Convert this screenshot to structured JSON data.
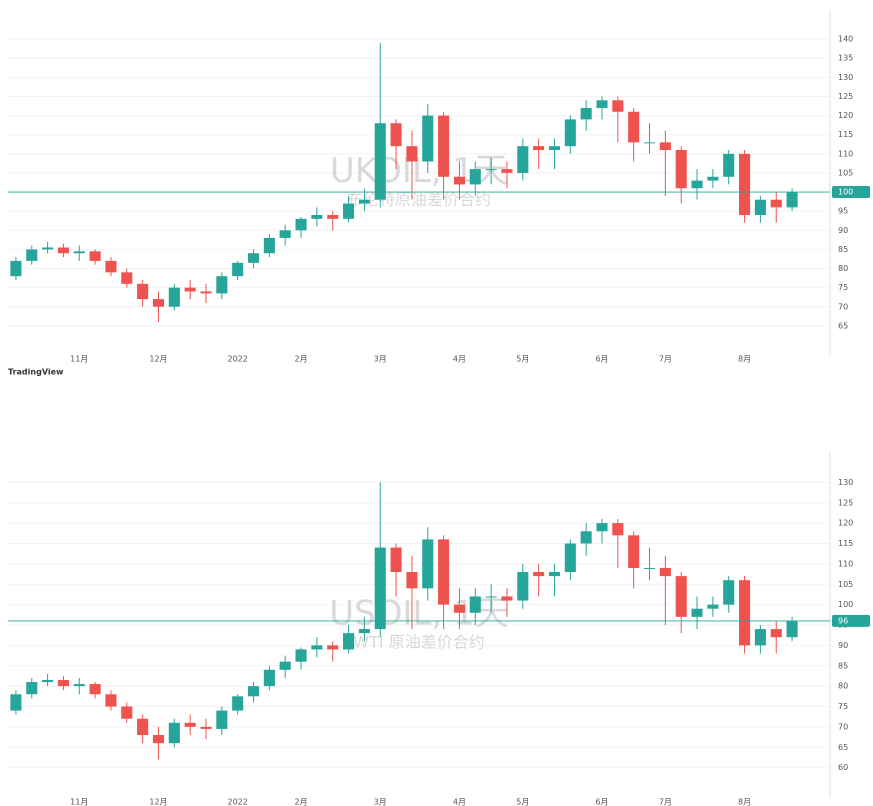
{
  "chart_data": [
    {
      "type": "candlestick",
      "watermark": "UKOIL, 1天",
      "subtitle": "布伦特原油差价合约",
      "categories": [
        null,
        null,
        null,
        null,
        "11月",
        null,
        null,
        null,
        null,
        "12月",
        null,
        null,
        null,
        null,
        "2022",
        null,
        null,
        null,
        "2月",
        null,
        null,
        null,
        null,
        "3月",
        null,
        null,
        null,
        null,
        "4月",
        null,
        null,
        null,
        "5月",
        null,
        null,
        null,
        null,
        "6月",
        null,
        null,
        null,
        "7月",
        null,
        null,
        null,
        null,
        "8月",
        null,
        null,
        null
      ],
      "open": [
        78,
        82,
        85,
        85.5,
        84,
        84.5,
        82,
        79,
        76,
        72,
        70,
        75,
        74,
        73.5,
        78,
        81.5,
        84,
        88,
        90,
        93,
        94,
        93,
        97,
        98,
        118,
        112,
        108,
        120,
        104,
        102,
        106,
        106,
        105,
        112,
        111,
        112,
        119,
        122,
        124,
        121,
        113,
        113,
        111,
        101,
        103,
        104,
        110,
        94,
        98,
        96
      ],
      "high": [
        83,
        86,
        87,
        86.5,
        86,
        85,
        83,
        80,
        77,
        74,
        76,
        77,
        76,
        79,
        82,
        85,
        89,
        91.5,
        93.5,
        96,
        95,
        99,
        101,
        139,
        119,
        116,
        123,
        121,
        108,
        108,
        109,
        108,
        114,
        114,
        114,
        120,
        124,
        125,
        125,
        122,
        118,
        116,
        112,
        106,
        106,
        111,
        111,
        99,
        100,
        101
      ],
      "low": [
        77,
        81,
        84,
        83,
        82,
        81,
        78,
        75,
        70,
        66,
        69,
        72,
        71,
        72,
        77,
        80,
        83,
        86,
        88,
        91,
        90,
        92,
        95,
        96,
        106,
        98,
        105,
        98,
        98,
        99,
        102,
        101,
        103,
        106,
        106,
        110,
        116,
        119,
        113,
        108,
        110,
        99,
        97,
        98,
        101,
        102,
        92,
        92,
        92,
        95
      ],
      "close": [
        82,
        85,
        85.5,
        84,
        84.5,
        82,
        79,
        76,
        72,
        70,
        75,
        74,
        73.5,
        78,
        81.5,
        84,
        88,
        90,
        93,
        94,
        93,
        97,
        98,
        118,
        112,
        108,
        120,
        104,
        102,
        106,
        106,
        105,
        112,
        111,
        112,
        119,
        122,
        124,
        121,
        113,
        113,
        111,
        101,
        103,
        104,
        110,
        94,
        98,
        96,
        100
      ],
      "up_color": "#26a69a",
      "down_color": "#ef5350",
      "ylim": [
        60,
        145
      ],
      "yticks": [
        65,
        70,
        75,
        80,
        85,
        90,
        95,
        100,
        105,
        110,
        115,
        120,
        125,
        130,
        135,
        140
      ],
      "grid": true
    },
    {
      "type": "candlestick",
      "watermark": "USOIL, 1天",
      "subtitle": "WTI 原油差价合约",
      "categories": [
        null,
        null,
        null,
        null,
        "11月",
        null,
        null,
        null,
        null,
        "12月",
        null,
        null,
        null,
        null,
        "2022",
        null,
        null,
        null,
        "2月",
        null,
        null,
        null,
        null,
        "3月",
        null,
        null,
        null,
        null,
        "4月",
        null,
        null,
        null,
        "5月",
        null,
        null,
        null,
        null,
        "6月",
        null,
        null,
        null,
        "7月",
        null,
        null,
        null,
        null,
        "8月",
        null,
        null,
        null
      ],
      "open": [
        74,
        78,
        81,
        81.5,
        80,
        80.5,
        78,
        75,
        72,
        68,
        66,
        71,
        70,
        69.5,
        74,
        77.5,
        80,
        84,
        86,
        89,
        90,
        89,
        93,
        94,
        114,
        108,
        104,
        116,
        100,
        98,
        102,
        102,
        101,
        108,
        107,
        108,
        115,
        118,
        120,
        117,
        109,
        109,
        107,
        97,
        99,
        100,
        106,
        90,
        94,
        92
      ],
      "high": [
        79,
        82,
        83,
        82.5,
        82,
        81,
        79,
        76,
        73,
        70,
        72,
        73,
        72,
        75,
        78,
        81,
        85,
        87.5,
        89.5,
        92,
        91,
        95,
        97,
        130,
        115,
        112,
        119,
        117,
        104,
        104,
        105,
        104,
        110,
        110,
        110,
        116,
        120,
        121,
        121,
        118,
        114,
        112,
        108,
        102,
        102,
        107,
        107,
        95,
        96,
        97
      ],
      "low": [
        73,
        77,
        80,
        79,
        78,
        77,
        74,
        71,
        66,
        62,
        65,
        68,
        67,
        68,
        73,
        76,
        79,
        82,
        84,
        87,
        86,
        88,
        91,
        92,
        102,
        94,
        101,
        94,
        94,
        95,
        98,
        97,
        99,
        102,
        102,
        106,
        112,
        115,
        109,
        104,
        106,
        95,
        93,
        94,
        97,
        98,
        88,
        88,
        88,
        91
      ],
      "close": [
        78,
        81,
        81.5,
        80,
        80.5,
        78,
        75,
        72,
        68,
        66,
        71,
        70,
        69.5,
        74,
        77.5,
        80,
        84,
        86,
        89,
        90,
        89,
        93,
        94,
        114,
        108,
        104,
        116,
        100,
        98,
        102,
        102,
        101,
        108,
        107,
        108,
        115,
        118,
        120,
        117,
        109,
        109,
        107,
        97,
        99,
        100,
        106,
        90,
        94,
        92,
        96
      ],
      "up_color": "#26a69a",
      "down_color": "#ef5350",
      "ylim": [
        55,
        135
      ],
      "yticks": [
        60,
        65,
        70,
        75,
        80,
        85,
        90,
        95,
        100,
        105,
        110,
        115,
        120,
        125,
        130
      ],
      "grid": true
    }
  ],
  "footer": {
    "logo": "TradingView"
  }
}
